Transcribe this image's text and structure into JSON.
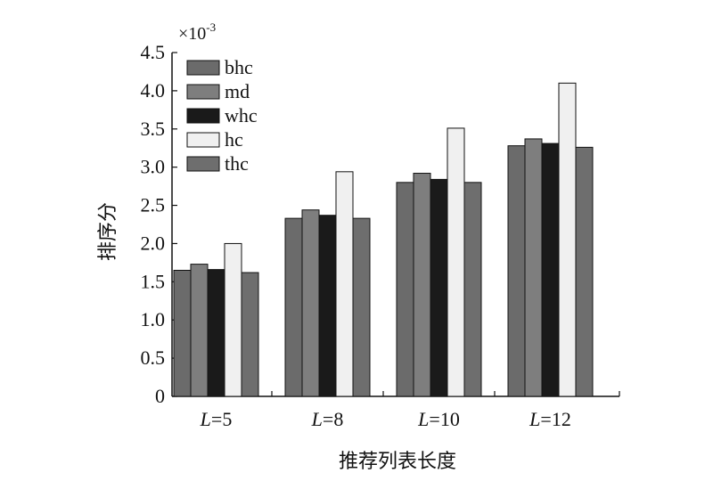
{
  "chart_data": {
    "type": "bar",
    "title": "",
    "xlabel": "推荐列表长度",
    "ylabel": "排序分",
    "y_scale_prefix": "×10",
    "y_scale_exponent": "-3",
    "ylim": [
      0,
      4.5
    ],
    "yticks": [
      "0",
      "0.5",
      "1.0",
      "1.5",
      "2.0",
      "2.5",
      "3.0",
      "3.5",
      "4.0",
      "4.5"
    ],
    "categories": [
      {
        "italic": "L",
        "rest": "=5"
      },
      {
        "italic": "L",
        "rest": "=8"
      },
      {
        "italic": "L",
        "rest": "=10"
      },
      {
        "italic": "L",
        "rest": "=12"
      }
    ],
    "series": [
      {
        "name": "bhc",
        "color": "#6b6b6b",
        "values": [
          1.65,
          2.33,
          2.8,
          3.28
        ]
      },
      {
        "name": "md",
        "color": "#7e7e7e",
        "values": [
          1.73,
          2.44,
          2.92,
          3.37
        ]
      },
      {
        "name": "whc",
        "color": "#1a1a1a",
        "values": [
          1.66,
          2.37,
          2.84,
          3.31
        ]
      },
      {
        "name": "hc",
        "color": "#f0f0f0",
        "values": [
          2.0,
          2.94,
          3.51,
          4.1
        ]
      },
      {
        "name": "thc",
        "color": "#6e6e6e",
        "values": [
          1.62,
          2.33,
          2.8,
          3.26
        ]
      }
    ],
    "legend_position": "top-left",
    "grid": false
  }
}
